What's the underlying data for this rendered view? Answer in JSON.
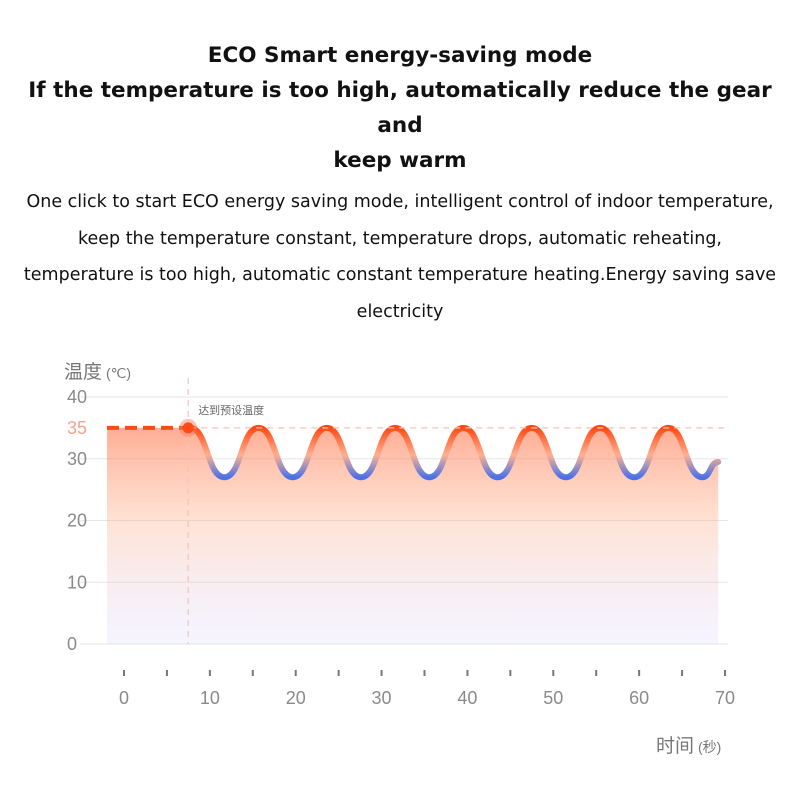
{
  "heading": {
    "lines": [
      "ECO Smart energy-saving mode",
      "If the temperature is too high, automatically reduce the gear and",
      "keep warm"
    ]
  },
  "description": {
    "lines": [
      "One click to start ECO energy saving mode, intelligent control of indoor temperature,",
      "keep the temperature constant, temperature drops, automatic reheating,",
      "temperature is too high, automatic constant temperature heating.Energy saving save",
      "electricity"
    ]
  },
  "colors": {
    "hot": "#ff4a14",
    "cool": "#4a72e8",
    "setpoint_label": "#f4a48f",
    "grid": "#e6e6e6",
    "tick_text": "#8a8a8a"
  },
  "chart_data": {
    "type": "line",
    "ylabel": "温度",
    "ylabel_unit": "(℃)",
    "xlabel": "时间",
    "xlabel_unit": "(秒)",
    "yticks": [
      0,
      10,
      20,
      30,
      40
    ],
    "ylim": [
      0,
      40
    ],
    "xticks": [
      0,
      10,
      20,
      30,
      40,
      50,
      60,
      70
    ],
    "xlim": [
      0,
      70
    ],
    "setpoint": {
      "value": 35,
      "label": "35",
      "x": 9.5
    },
    "annotation": "达到预设温度",
    "series": [
      {
        "x": [
          0,
          9.5,
          13.4,
          17.3,
          21.2,
          25.1,
          29.0,
          32.9,
          36.8,
          40.7,
          44.6,
          48.5,
          52.4,
          56.3,
          60.2,
          64.1,
          68.0,
          69.8
        ],
        "y": [
          35,
          35,
          27,
          35,
          27,
          35,
          27,
          35,
          27,
          35,
          27,
          35,
          27,
          35,
          27,
          35,
          27,
          29.5
        ]
      }
    ],
    "grid": true,
    "legend": "none"
  }
}
